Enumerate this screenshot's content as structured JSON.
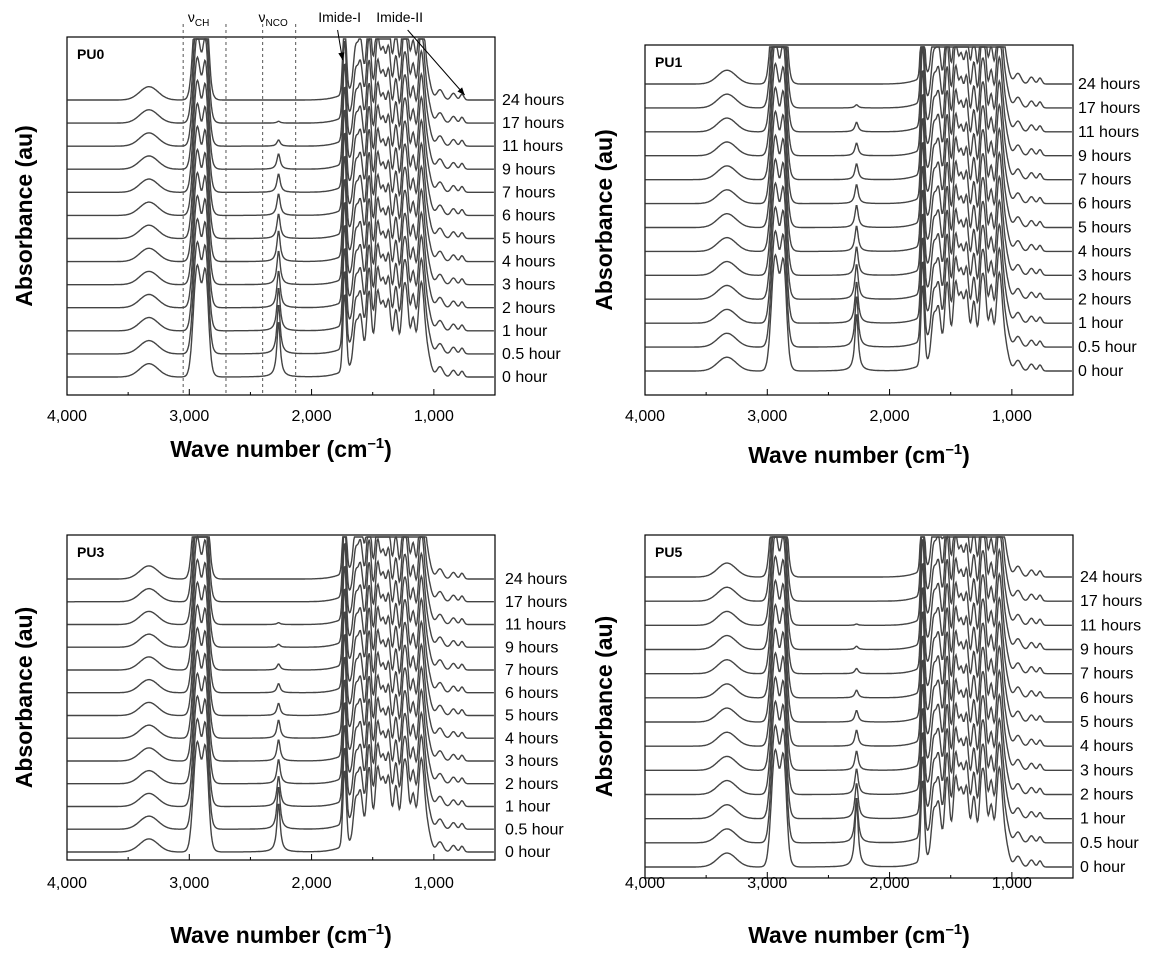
{
  "chart_data": [
    {
      "type": "line",
      "panel_label": "PU0",
      "xlabel": "Wave number (cm",
      "xlabel_sup": "–1",
      "xlabel_close": ")",
      "ylabel": "Absorbance (au)",
      "xlim": [
        4000,
        500
      ],
      "x_reversed": true,
      "xticks": [
        4000,
        3000,
        2000,
        1000
      ],
      "xtick_labels": [
        "4,000",
        "3,000",
        "2,000",
        "1,000"
      ],
      "series": [
        {
          "name": "24 hours",
          "nco_peak": 0.0
        },
        {
          "name": "17 hours",
          "nco_peak": 0.03
        },
        {
          "name": "11 hours",
          "nco_peak": 0.1
        },
        {
          "name": "9 hours",
          "nco_peak": 0.25
        },
        {
          "name": "7 hours",
          "nco_peak": 0.3
        },
        {
          "name": "6 hours",
          "nco_peak": 0.35
        },
        {
          "name": "5 hours",
          "nco_peak": 0.4
        },
        {
          "name": "4 hours",
          "nco_peak": 0.5
        },
        {
          "name": "3 hours",
          "nco_peak": 0.55
        },
        {
          "name": "2 hours",
          "nco_peak": 0.6
        },
        {
          "name": "1 hour",
          "nco_peak": 0.7
        },
        {
          "name": "0.5 hour",
          "nco_peak": 0.8
        },
        {
          "name": "0 hour",
          "nco_peak": 0.9
        }
      ],
      "annotations": [
        {
          "text": "ν",
          "sub": "CH",
          "region": [
            3050,
            2700
          ]
        },
        {
          "text": "ν",
          "sub": "NCO",
          "region": [
            2400,
            2130
          ]
        },
        {
          "text": "Imide-I",
          "x": 1730
        },
        {
          "text": "Imide-II",
          "x": 830
        }
      ]
    },
    {
      "type": "line",
      "panel_label": "PU1",
      "xlabel": "Wave number (cm",
      "xlabel_sup": "–1",
      "xlabel_close": ")",
      "ylabel": "Absorbance (au)",
      "xlim": [
        4000,
        500
      ],
      "x_reversed": true,
      "xticks": [
        4000,
        3000,
        2000,
        1000
      ],
      "xtick_labels": [
        "4,000",
        "3,000",
        "2,000",
        "1,000"
      ],
      "series": [
        {
          "name": "24 hours",
          "nco_peak": 0.0
        },
        {
          "name": "17 hours",
          "nco_peak": 0.05
        },
        {
          "name": "11 hours",
          "nco_peak": 0.15
        },
        {
          "name": "9 hours",
          "nco_peak": 0.2
        },
        {
          "name": "7 hours",
          "nco_peak": 0.25
        },
        {
          "name": "6 hours",
          "nco_peak": 0.3
        },
        {
          "name": "5 hours",
          "nco_peak": 0.35
        },
        {
          "name": "4 hours",
          "nco_peak": 0.4
        },
        {
          "name": "3 hours",
          "nco_peak": 0.45
        },
        {
          "name": "2 hours",
          "nco_peak": 0.55
        },
        {
          "name": "1 hour",
          "nco_peak": 0.65
        },
        {
          "name": "0.5 hour",
          "nco_peak": 0.8
        },
        {
          "name": "0 hour",
          "nco_peak": 0.9
        }
      ]
    },
    {
      "type": "line",
      "panel_label": "PU3",
      "xlabel": "Wave number (cm",
      "xlabel_sup": "–1",
      "xlabel_close": ")",
      "ylabel": "Absorbance (au)",
      "xlim": [
        4000,
        500
      ],
      "x_reversed": true,
      "xticks": [
        4000,
        3000,
        2000,
        1000
      ],
      "xtick_labels": [
        "4,000",
        "3,000",
        "2,000",
        "1,000"
      ],
      "series": [
        {
          "name": "24 hours",
          "nco_peak": 0.0
        },
        {
          "name": "17 hours",
          "nco_peak": 0.0
        },
        {
          "name": "11 hours",
          "nco_peak": 0.03
        },
        {
          "name": "9 hours",
          "nco_peak": 0.05
        },
        {
          "name": "7 hours",
          "nco_peak": 0.1
        },
        {
          "name": "6 hours",
          "nco_peak": 0.15
        },
        {
          "name": "5 hours",
          "nco_peak": 0.2
        },
        {
          "name": "4 hours",
          "nco_peak": 0.3
        },
        {
          "name": "3 hours",
          "nco_peak": 0.35
        },
        {
          "name": "2 hours",
          "nco_peak": 0.4
        },
        {
          "name": "1 hour",
          "nco_peak": 0.5
        },
        {
          "name": "0.5 hour",
          "nco_peak": 0.7
        },
        {
          "name": "0 hour",
          "nco_peak": 0.8
        }
      ]
    },
    {
      "type": "line",
      "panel_label": "PU5",
      "xlabel": "Wave number (cm",
      "xlabel_sup": "–1",
      "xlabel_close": ")",
      "ylabel": "Absorbance (au)",
      "xlim": [
        4000,
        500
      ],
      "x_reversed": true,
      "xticks": [
        4000,
        3000,
        2000,
        1000
      ],
      "xtick_labels": [
        "4,000",
        "3,000",
        "2,000",
        "1,000"
      ],
      "series": [
        {
          "name": "24 hours",
          "nco_peak": 0.0
        },
        {
          "name": "17 hours",
          "nco_peak": 0.0
        },
        {
          "name": "11 hours",
          "nco_peak": 0.02
        },
        {
          "name": "9 hours",
          "nco_peak": 0.05
        },
        {
          "name": "7 hours",
          "nco_peak": 0.08
        },
        {
          "name": "6 hours",
          "nco_peak": 0.12
        },
        {
          "name": "5 hours",
          "nco_peak": 0.18
        },
        {
          "name": "4 hours",
          "nco_peak": 0.25
        },
        {
          "name": "3 hours",
          "nco_peak": 0.3
        },
        {
          "name": "2 hours",
          "nco_peak": 0.4
        },
        {
          "name": "1 hour",
          "nco_peak": 0.55
        },
        {
          "name": "0.5 hour",
          "nco_peak": 0.7
        },
        {
          "name": "0 hour",
          "nco_peak": 1.0
        }
      ]
    }
  ]
}
